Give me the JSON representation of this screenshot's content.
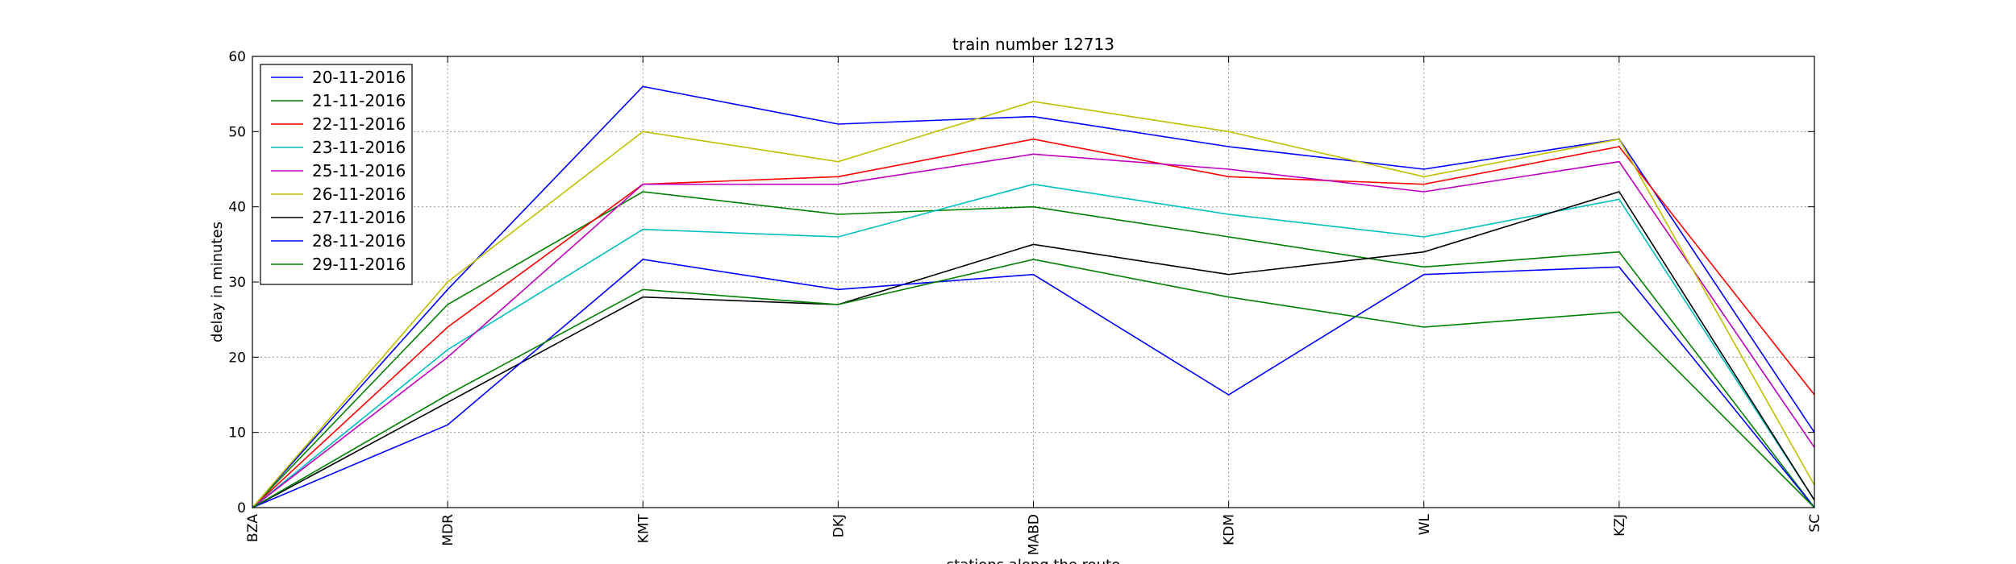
{
  "chart_data": {
    "type": "line",
    "title": "train number 12713",
    "xlabel": "stations along the route",
    "ylabel": "delay in minutes",
    "categories": [
      "BZA",
      "MDR",
      "KMT",
      "DKJ",
      "MABD",
      "KDM",
      "WL",
      "KZJ",
      "SC"
    ],
    "ylim": [
      0,
      60
    ],
    "yticks": [
      0,
      10,
      20,
      30,
      40,
      50,
      60
    ],
    "grid": true,
    "legend_position": "top-left",
    "series": [
      {
        "name": "20-11-2016",
        "color": "#0000ff",
        "values": [
          0,
          29,
          56,
          51,
          52,
          48,
          45,
          49,
          10
        ]
      },
      {
        "name": "21-11-2016",
        "color": "#008000",
        "values": [
          0,
          27,
          42,
          39,
          40,
          36,
          32,
          34,
          0
        ]
      },
      {
        "name": "22-11-2016",
        "color": "#ff0000",
        "values": [
          0,
          24,
          43,
          44,
          49,
          44,
          43,
          48,
          15
        ]
      },
      {
        "name": "23-11-2016",
        "color": "#00bfbf",
        "values": [
          0,
          21,
          37,
          36,
          43,
          39,
          36,
          41,
          1
        ]
      },
      {
        "name": "25-11-2016",
        "color": "#bf00bf",
        "values": [
          0,
          20,
          43,
          43,
          47,
          45,
          42,
          46,
          8
        ]
      },
      {
        "name": "26-11-2016",
        "color": "#bfbf00",
        "values": [
          0,
          30,
          50,
          46,
          54,
          50,
          44,
          49,
          3
        ]
      },
      {
        "name": "27-11-2016",
        "color": "#000000",
        "values": [
          0,
          14,
          28,
          27,
          35,
          31,
          34,
          42,
          1
        ]
      },
      {
        "name": "28-11-2016",
        "color": "#0000ff",
        "values": [
          0,
          11,
          33,
          29,
          31,
          15,
          31,
          32,
          0
        ]
      },
      {
        "name": "29-11-2016",
        "color": "#008000",
        "values": [
          0,
          15,
          29,
          27,
          33,
          28,
          24,
          26,
          0
        ]
      }
    ]
  }
}
